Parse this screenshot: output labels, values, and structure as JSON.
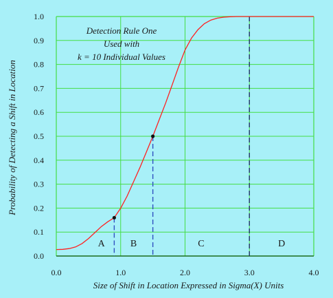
{
  "chart_data": {
    "type": "line",
    "xlabel": "Size of Shift in Location Expressed in Sigma(X) Units",
    "ylabel": "Probability of Detecting a Shift in Location",
    "xlim": [
      0,
      4
    ],
    "ylim": [
      0,
      1
    ],
    "x_ticks": [
      "0.0",
      "1.0",
      "2.0",
      "3.0",
      "4.0"
    ],
    "y_ticks": [
      "0.0",
      "0.1",
      "0.2",
      "0.3",
      "0.4",
      "0.5",
      "0.6",
      "0.7",
      "0.8",
      "0.9",
      "1.0"
    ],
    "grid": true,
    "annotation_lines": [
      "Detection Rule One",
      "Used with",
      "k = 10 Individual Values"
    ],
    "series": [
      {
        "x": [
          0.0,
          0.1,
          0.2,
          0.3,
          0.4,
          0.5,
          0.6,
          0.7,
          0.8,
          0.9,
          1.0,
          1.1,
          1.2,
          1.3,
          1.4,
          1.5,
          1.6,
          1.7,
          1.8,
          1.9,
          2.0,
          2.1,
          2.2,
          2.3,
          2.4,
          2.5,
          2.6,
          2.7,
          2.8,
          2.9,
          3.0,
          3.5,
          4.0
        ],
        "y": [
          0.027,
          0.028,
          0.031,
          0.038,
          0.052,
          0.073,
          0.098,
          0.123,
          0.143,
          0.16,
          0.2,
          0.25,
          0.31,
          0.37,
          0.435,
          0.5,
          0.57,
          0.64,
          0.715,
          0.79,
          0.86,
          0.91,
          0.945,
          0.97,
          0.985,
          0.993,
          0.997,
          0.999,
          1.0,
          1.0,
          1.0,
          1.0,
          1.0
        ],
        "color": "#ff2020"
      }
    ],
    "markers": [
      {
        "x": 0.9,
        "y": 0.16
      },
      {
        "x": 1.5,
        "y": 0.5
      }
    ],
    "reference_lines": [
      {
        "x": 0.9,
        "y_top": 0.16,
        "color": "#3050c0"
      },
      {
        "x": 1.5,
        "y_top": 0.5,
        "color": "#3050c0"
      },
      {
        "x": 3.0,
        "y_top": 1.0,
        "color": "#223366"
      }
    ],
    "regions": [
      {
        "label": "A",
        "x": 0.7
      },
      {
        "label": "B",
        "x": 1.2
      },
      {
        "label": "C",
        "x": 2.25
      },
      {
        "label": "D",
        "x": 3.5
      }
    ],
    "region_label_y": 0.04,
    "colors": {
      "background": "#a8f0f8",
      "plot_bg": "#a8f0f8",
      "grid": "#44dd44",
      "frame": "#44dd44",
      "baseline": "#1a6a1a",
      "marker": "#111111"
    }
  }
}
